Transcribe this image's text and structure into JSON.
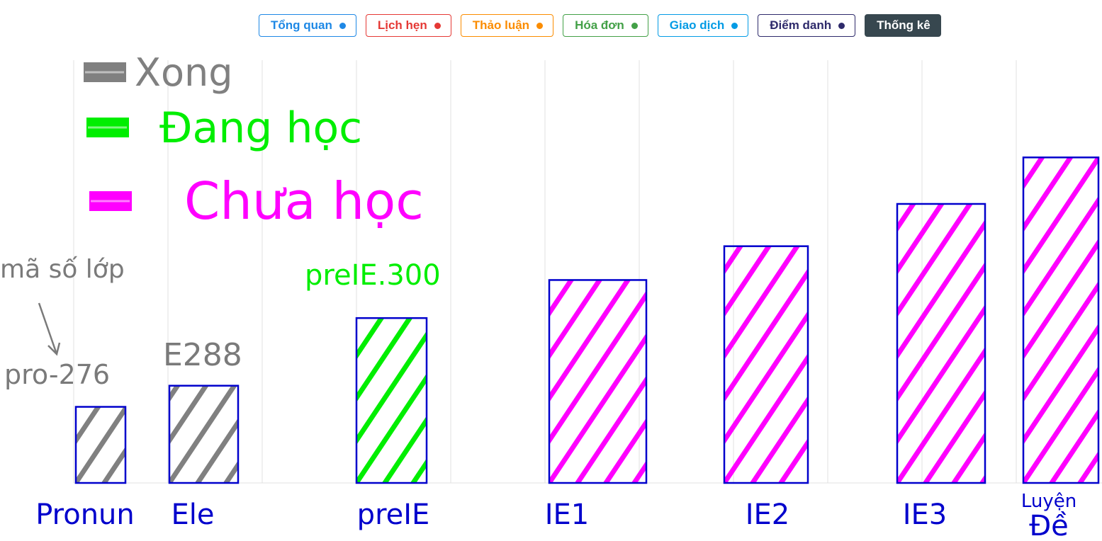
{
  "tabs": [
    {
      "label": "Tổng quan",
      "color": "#1e88e5",
      "active": false
    },
    {
      "label": "Lịch hẹn",
      "color": "#e53935",
      "active": false
    },
    {
      "label": "Thảo luận",
      "color": "#fb8c00",
      "active": false
    },
    {
      "label": "Hóa đơn",
      "color": "#43a047",
      "active": false
    },
    {
      "label": "Giao dịch",
      "color": "#039be5",
      "active": false
    },
    {
      "label": "Điểm danh",
      "color": "#2e2a6b",
      "active": false
    },
    {
      "label": "Thống kê",
      "color": "#37474f",
      "active": true
    }
  ],
  "chart_data": {
    "type": "bar",
    "categories": [
      "Pronun",
      "Ele",
      "preIE",
      "IE1",
      "IE2",
      "IE3",
      "Luyện Đề"
    ],
    "values": [
      18,
      23,
      39,
      48,
      56,
      66,
      77
    ],
    "bar_status": [
      "Xong",
      "Xong",
      "Đang học",
      "Chưa học",
      "Chưa học",
      "Chưa học",
      "Chưa học"
    ],
    "ylim": [
      0,
      100
    ],
    "grid": true,
    "legend_position": "top-left",
    "legend": [
      {
        "label": "Xong",
        "color": "#808080"
      },
      {
        "label": "Đang học",
        "color": "#00ee00"
      },
      {
        "label": "Chưa học",
        "color": "#ff00ff"
      }
    ],
    "outline_color": "#0000cc",
    "annotations": {
      "class_code_label": "mã số lớp",
      "pronun_code": "pro-276",
      "ele_code": "E288",
      "preie_code": "preIE.300"
    }
  }
}
